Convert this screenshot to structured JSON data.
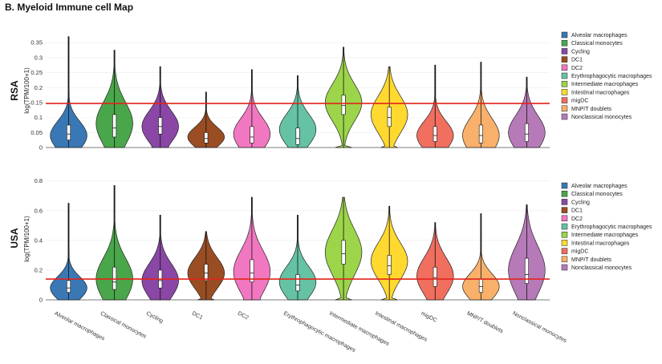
{
  "figure_title": "B. Myeloid Immune cell Map",
  "chart_data": {
    "type": "violin",
    "categories": [
      "Alveolar macrophages",
      "Classical monocytes",
      "Cycling",
      "DC1",
      "DC2",
      "Erythrophagocytic macrophages",
      "Intermediate macrophages",
      "Intestinal macrophages",
      "migDC",
      "MNP/T doublets",
      "Nonclassical monocytes"
    ],
    "colors": [
      "#3a78b5",
      "#4aa64a",
      "#8a47a5",
      "#9a4d22",
      "#f277c1",
      "#66c2a5",
      "#9cd44a",
      "#ffd92f",
      "#f06f5f",
      "#f8b06a",
      "#b67ab8"
    ],
    "legend_labels": [
      "Alveolar macrophages",
      "Classical monocytes",
      "Cycling",
      "DC1",
      "DC2",
      "Erythrophagocytic macrophages",
      "Intermediate macrophages",
      "Intestinal macrophages",
      "migDC",
      "MNP/T doublets",
      "Nonclassical monocytes"
    ],
    "panels": [
      {
        "label": "RSA",
        "ylabel": "log(TPM/100+1)",
        "ylim": [
          0,
          0.38
        ],
        "yticks": [
          0,
          0.05,
          0.1,
          0.15,
          0.2,
          0.25,
          0.3,
          0.35
        ],
        "ytick_labels": [
          "0",
          "0.05",
          "0.1",
          "0.15",
          "0.2",
          "0.25",
          "0.3",
          "0.35"
        ],
        "threshold": 0.147,
        "series": [
          {
            "min": 0,
            "q1": 0.025,
            "median": 0.045,
            "q3": 0.075,
            "max": 0.37,
            "mode": 0.04
          },
          {
            "min": 0,
            "q1": 0.035,
            "median": 0.065,
            "q3": 0.11,
            "max": 0.325,
            "mode": 0.08
          },
          {
            "min": 0,
            "q1": 0.045,
            "median": 0.07,
            "q3": 0.1,
            "max": 0.27,
            "mode": 0.07
          },
          {
            "min": 0,
            "q1": 0.015,
            "median": 0.03,
            "q3": 0.05,
            "max": 0.185,
            "mode": 0.035
          },
          {
            "min": 0,
            "q1": 0.015,
            "median": 0.035,
            "q3": 0.07,
            "max": 0.26,
            "mode": 0.045
          },
          {
            "min": 0,
            "q1": 0.01,
            "median": 0.03,
            "q3": 0.065,
            "max": 0.24,
            "mode": 0.06
          },
          {
            "min": 0,
            "q1": 0.11,
            "median": 0.14,
            "q3": 0.175,
            "max": 0.335,
            "mode": 0.15
          },
          {
            "min": 0,
            "q1": 0.07,
            "median": 0.1,
            "q3": 0.135,
            "max": 0.27,
            "mode": 0.11
          },
          {
            "min": 0,
            "q1": 0.02,
            "median": 0.04,
            "q3": 0.07,
            "max": 0.275,
            "mode": 0.04
          },
          {
            "min": 0,
            "q1": 0.015,
            "median": 0.04,
            "q3": 0.075,
            "max": 0.285,
            "mode": 0.04
          },
          {
            "min": 0,
            "q1": 0.02,
            "median": 0.045,
            "q3": 0.08,
            "max": 0.235,
            "mode": 0.05
          }
        ]
      },
      {
        "label": "USA",
        "ylabel": "log(TPM/100+1)",
        "ylim": [
          0,
          0.82
        ],
        "yticks": [
          0,
          0.2,
          0.4,
          0.6,
          0.8
        ],
        "ytick_labels": [
          "0",
          "0.2",
          "0.4",
          "0.6",
          "0.8"
        ],
        "threshold": 0.14,
        "series": [
          {
            "min": 0,
            "q1": 0.05,
            "median": 0.08,
            "q3": 0.13,
            "max": 0.65,
            "mode": 0.08
          },
          {
            "min": 0,
            "q1": 0.07,
            "median": 0.12,
            "q3": 0.22,
            "max": 0.77,
            "mode": 0.14
          },
          {
            "min": 0,
            "q1": 0.08,
            "median": 0.13,
            "q3": 0.2,
            "max": 0.57,
            "mode": 0.13
          },
          {
            "min": 0,
            "q1": 0.13,
            "median": 0.18,
            "q3": 0.24,
            "max": 0.46,
            "mode": 0.18
          },
          {
            "min": 0,
            "q1": 0.12,
            "median": 0.18,
            "q3": 0.27,
            "max": 0.69,
            "mode": 0.19
          },
          {
            "min": 0,
            "q1": 0.06,
            "median": 0.1,
            "q3": 0.17,
            "max": 0.57,
            "mode": 0.12
          },
          {
            "min": 0,
            "q1": 0.24,
            "median": 0.31,
            "q3": 0.4,
            "max": 0.69,
            "mode": 0.32
          },
          {
            "min": 0,
            "q1": 0.17,
            "median": 0.23,
            "q3": 0.3,
            "max": 0.63,
            "mode": 0.26
          },
          {
            "min": 0,
            "q1": 0.09,
            "median": 0.15,
            "q3": 0.22,
            "max": 0.52,
            "mode": 0.16
          },
          {
            "min": 0,
            "q1": 0.05,
            "median": 0.09,
            "q3": 0.14,
            "max": 0.58,
            "mode": 0.09
          },
          {
            "min": 0,
            "q1": 0.11,
            "median": 0.17,
            "q3": 0.28,
            "max": 0.64,
            "mode": 0.2
          }
        ]
      }
    ]
  }
}
